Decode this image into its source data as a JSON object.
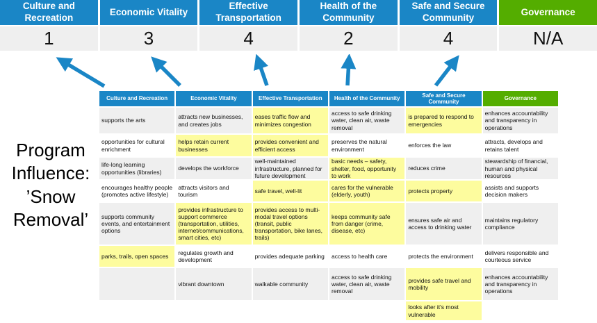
{
  "title": {
    "text": "Program Influence: ’Snow Removal’",
    "lines": [
      "Program",
      "Influence:",
      "’Snow",
      "Removal’"
    ]
  },
  "colors": {
    "header_blue": "#1a86c6",
    "header_green": "#54ad00",
    "row_gray": "#efefef",
    "highlight_yellow": "#fdfc9e",
    "arrow_blue": "#1a86c6",
    "score_bg": "#efefef"
  },
  "summary": {
    "columns": [
      {
        "label": "Culture and Recreation",
        "score": "1",
        "theme": "blue"
      },
      {
        "label": "Economic Vitality",
        "score": "3",
        "theme": "blue"
      },
      {
        "label": "Effective Transportation",
        "score": "4",
        "theme": "blue"
      },
      {
        "label": "Health of the Community",
        "score": "2",
        "theme": "blue"
      },
      {
        "label": "Safe and Secure Community",
        "score": "4",
        "theme": "blue"
      },
      {
        "label": "Governance",
        "score": "N/A",
        "theme": "green"
      }
    ]
  },
  "matrix": {
    "headers": [
      "Culture and Recreation",
      "Economic Vitality",
      "Effective Transportation",
      "Health of the Community",
      "Safe and Secure Community",
      "Governance"
    ],
    "rows": [
      [
        {
          "text": "supports the arts",
          "highlight": false
        },
        {
          "text": "attracts new businesses, and creates jobs",
          "highlight": false
        },
        {
          "text": "eases traffic flow and minimizes congestion",
          "highlight": true
        },
        {
          "text": "access to safe drinking water, clean air, waste removal",
          "highlight": false
        },
        {
          "text": "is prepared to respond to emergencies",
          "highlight": true
        },
        {
          "text": "enhances accountability and transparency in operations",
          "highlight": false
        }
      ],
      [
        {
          "text": "opportunities for cultural enrichment",
          "highlight": false
        },
        {
          "text": "helps retain current businesses",
          "highlight": true
        },
        {
          "text": "provides convenient and efficient access",
          "highlight": true
        },
        {
          "text": "preserves the natural environment",
          "highlight": false
        },
        {
          "text": "enforces the law",
          "highlight": false
        },
        {
          "text": "attracts, develops and retains talent",
          "highlight": false
        }
      ],
      [
        {
          "text": "life-long learning opportunities (libraries)",
          "highlight": false
        },
        {
          "text": "develops the workforce",
          "highlight": false
        },
        {
          "text": "well-maintained infrastructure, planned for future development",
          "highlight": false
        },
        {
          "text": "basic needs – safety, shelter, food, opportunity to work",
          "highlight": true
        },
        {
          "text": "reduces crime",
          "highlight": false
        },
        {
          "text": "stewardship of financial, human and physical resources",
          "highlight": false
        }
      ],
      [
        {
          "text": "encourages healthy people (promotes active lifestyle)",
          "highlight": false
        },
        {
          "text": "attracts visitors and tourism",
          "highlight": false
        },
        {
          "text": "safe travel, well-lit",
          "highlight": true
        },
        {
          "text": "cares for the vulnerable (elderly, youth)",
          "highlight": true
        },
        {
          "text": "protects property",
          "highlight": true
        },
        {
          "text": "assists and supports decision makers",
          "highlight": false
        }
      ],
      [
        {
          "text": "supports community events, and entertainment options",
          "highlight": false
        },
        {
          "text": "provides infrastructure to support commerce (transportation, utilities, internet/communications, smart cities, etc)",
          "highlight": true
        },
        {
          "text": "provides access to multi-modal travel options (transit, public transportation, bike lanes, trails)",
          "highlight": true
        },
        {
          "text": "keeps community safe from danger (crime, disease, etc)",
          "highlight": true
        },
        {
          "text": "ensures safe air and access to drinking water",
          "highlight": false
        },
        {
          "text": "maintains regulatory compliance",
          "highlight": false
        }
      ],
      [
        {
          "text": "parks, trails, open spaces",
          "highlight": true
        },
        {
          "text": "regulates growth and development",
          "highlight": false
        },
        {
          "text": "provides adequate parking",
          "highlight": false
        },
        {
          "text": "access to health care",
          "highlight": false
        },
        {
          "text": "protects the environment",
          "highlight": false
        },
        {
          "text": "delivers responsible and courteous service",
          "highlight": false
        }
      ],
      [
        {
          "text": "",
          "highlight": false
        },
        {
          "text": "vibrant downtown",
          "highlight": false
        },
        {
          "text": "walkable community",
          "highlight": false
        },
        {
          "text": "access to safe drinking water, clean air, waste removal",
          "highlight": false
        },
        {
          "text": "provides safe travel and mobility",
          "highlight": true
        },
        {
          "text": "enhances accountability and transparency in operations",
          "highlight": false
        }
      ],
      [
        {
          "text": "",
          "highlight": false
        },
        {
          "text": "",
          "highlight": false
        },
        {
          "text": "",
          "highlight": false
        },
        {
          "text": "",
          "highlight": false
        },
        {
          "text": "looks after it's most vulnerable",
          "highlight": true
        },
        {
          "text": "",
          "highlight": false
        }
      ]
    ]
  }
}
